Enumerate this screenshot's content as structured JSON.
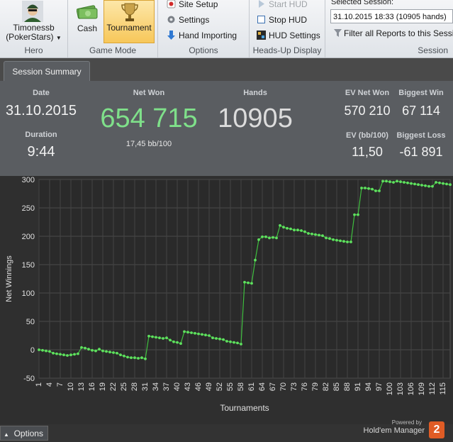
{
  "ribbon": {
    "hero": {
      "name": "Timonessb",
      "site": "(PokerStars)",
      "label": "Hero"
    },
    "game_mode": {
      "cash": "Cash",
      "tournament": "Tournament",
      "label": "Game Mode"
    },
    "options": {
      "site_setup": "Site Setup",
      "settings": "Settings",
      "hand_importing": "Hand Importing",
      "label": "Options"
    },
    "hud": {
      "start": "Start HUD",
      "stop": "Stop HUD",
      "settings": "HUD Settings",
      "label": "Heads-Up Display"
    },
    "session": {
      "title": "Selected Session:",
      "value": "31.10.2015 18:33 (10905 hands)",
      "filter": "Filter all Reports to this Session",
      "label": "Session"
    }
  },
  "tab": {
    "label": "Session Summary"
  },
  "summary": {
    "date_label": "Date",
    "date": "31.10.2015",
    "duration_label": "Duration",
    "duration": "9:44",
    "netwon_label": "Net Won",
    "netwon": "654 715",
    "bb100": "17,45 bb/100",
    "hands_label": "Hands",
    "hands": "10905",
    "ev_label": "EV Net Won",
    "ev": "570 210",
    "evbb_label": "EV (bb/100)",
    "evbb": "11,50",
    "bigwin_label": "Biggest Win",
    "bigwin": "67 114",
    "bigloss_label": "Biggest Loss",
    "bigloss": "-61 891"
  },
  "chart_data": {
    "type": "line",
    "xlabel": "Tournaments",
    "ylabel": "Net Winnings",
    "ylim": [
      -50,
      300
    ],
    "xlim": [
      1,
      117
    ],
    "grid": true,
    "yticks": [
      "-50",
      "0",
      "50",
      "100",
      "150",
      "200",
      "250",
      "300"
    ],
    "xticks": [
      "1",
      "4",
      "7",
      "10",
      "13",
      "16",
      "19",
      "22",
      "25",
      "28",
      "31",
      "34",
      "37",
      "40",
      "43",
      "46",
      "49",
      "52",
      "55",
      "58",
      "61",
      "64",
      "67",
      "70",
      "73",
      "76",
      "79",
      "82",
      "85",
      "88",
      "91",
      "94",
      "97",
      "100",
      "103",
      "106",
      "109",
      "112",
      "115"
    ],
    "series": [
      {
        "color": "#5fe05f",
        "x": [
          1,
          2,
          3,
          4,
          5,
          6,
          7,
          8,
          9,
          10,
          11,
          12,
          13,
          14,
          15,
          16,
          17,
          18,
          19,
          20,
          21,
          22,
          23,
          24,
          25,
          26,
          27,
          28,
          29,
          30,
          31,
          32,
          33,
          34,
          35,
          36,
          37,
          38,
          39,
          40,
          41,
          42,
          43,
          44,
          45,
          46,
          47,
          48,
          49,
          50,
          51,
          52,
          53,
          54,
          55,
          56,
          57,
          58,
          59,
          60,
          61,
          62,
          63,
          64,
          65,
          66,
          67,
          68,
          69,
          70,
          71,
          72,
          73,
          74,
          75,
          76,
          77,
          78,
          79,
          80,
          81,
          82,
          83,
          84,
          85,
          86,
          87,
          88,
          89,
          90,
          91,
          92,
          93,
          94,
          95,
          96,
          97,
          98,
          99,
          100,
          101,
          102,
          103,
          104,
          105,
          106,
          107,
          108,
          109,
          110,
          111,
          112,
          113,
          114,
          115,
          116,
          117
        ],
        "y": [
          0,
          -1,
          -2,
          -3,
          -6,
          -7,
          -8,
          -9,
          -10,
          -9,
          -8,
          -7,
          4,
          3,
          1,
          -1,
          -2,
          1,
          -2,
          -3,
          -4,
          -5,
          -6,
          -9,
          -11,
          -13,
          -14,
          -14,
          -15,
          -14,
          -16,
          24,
          23,
          22,
          21,
          20,
          21,
          17,
          14,
          13,
          11,
          32,
          31,
          30,
          29,
          28,
          27,
          26,
          25,
          21,
          20,
          19,
          18,
          15,
          14,
          13,
          12,
          10,
          119,
          118,
          117,
          158,
          194,
          199,
          199,
          197,
          198,
          197,
          219,
          216,
          214,
          213,
          211,
          211,
          210,
          208,
          205,
          204,
          203,
          202,
          201,
          197,
          196,
          194,
          193,
          192,
          191,
          190,
          190,
          238,
          238,
          285,
          285,
          284,
          283,
          280,
          280,
          297,
          297,
          296,
          295,
          297,
          296,
          295,
          294,
          293,
          292,
          291,
          290,
          289,
          288,
          288,
          295,
          294,
          293,
          292,
          291
        ]
      }
    ]
  }
}
